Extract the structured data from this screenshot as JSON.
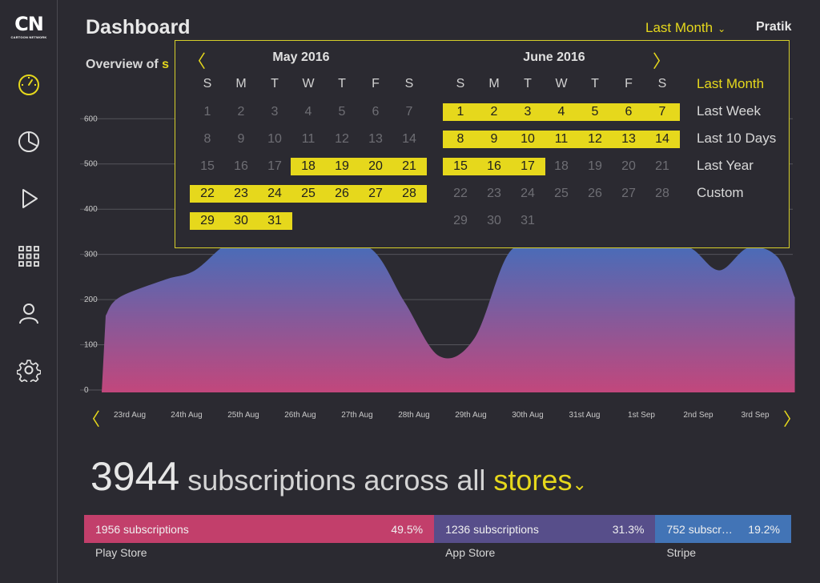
{
  "brand": {
    "logo": "CN",
    "logo_sub": "CARTOON NETWORK"
  },
  "header": {
    "title": "Dashboard",
    "range_select": "Last Month",
    "user": "Pratik",
    "overview_prefix": "Overview of ",
    "overview_highlight": "s"
  },
  "sidebar": {
    "items": [
      {
        "icon": "speedometer-icon",
        "active": true
      },
      {
        "icon": "pie-chart-icon",
        "active": false
      },
      {
        "icon": "play-icon",
        "active": false
      },
      {
        "icon": "grid-icon",
        "active": false
      },
      {
        "icon": "user-icon",
        "active": false
      },
      {
        "icon": "gear-icon",
        "active": false
      }
    ]
  },
  "calendar": {
    "prev_arrow": "〈",
    "next_arrow": "〉",
    "weekdays": [
      "S",
      "M",
      "T",
      "W",
      "T",
      "F",
      "S"
    ],
    "months": [
      {
        "title": "May 2016",
        "start_weekday": 0,
        "days": 31,
        "selected_from": 18,
        "selected_to": 31
      },
      {
        "title": "June 2016",
        "start_weekday": 0,
        "days": 31,
        "selected_from": 1,
        "selected_to": 17
      }
    ],
    "presets": [
      {
        "label": "Last Month",
        "active": true
      },
      {
        "label": "Last Week",
        "active": false
      },
      {
        "label": "Last 10 Days",
        "active": false
      },
      {
        "label": "Last Year",
        "active": false
      },
      {
        "label": "Custom",
        "active": false
      }
    ]
  },
  "chart_data": {
    "type": "area",
    "categories": [
      "23rd Aug",
      "24th Aug",
      "25th Aug",
      "26th Aug",
      "27th Aug",
      "28th Aug",
      "29th Aug",
      "30th Aug",
      "31st Aug",
      "1st Sep",
      "2nd Sep",
      "3rd Sep"
    ],
    "x": [
      0,
      0.05,
      0.3,
      1.1,
      1.6,
      2.3,
      3.2,
      3.7,
      4.6,
      5.2,
      5.8,
      6.4,
      7.0,
      7.6,
      8.2,
      8.9,
      9.5,
      10.1,
      10.6,
      11.1,
      11.6,
      11.9
    ],
    "values": [
      0,
      170,
      210,
      250,
      270,
      340,
      350,
      330,
      320,
      200,
      80,
      120,
      310,
      320,
      320,
      330,
      330,
      320,
      270,
      320,
      300,
      210
    ],
    "yticks": [
      0,
      100,
      200,
      300,
      400,
      500,
      600
    ],
    "ylim": [
      0,
      620
    ],
    "grid": true,
    "gradient_top": "#3f6fbd",
    "gradient_bottom": "#c2477c"
  },
  "chart_nav": {
    "prev": "〈",
    "next": "〉"
  },
  "summary": {
    "count": "3944",
    "text": "subscriptions across all",
    "stores_label": "stores",
    "chevron": "⌄"
  },
  "stores": [
    {
      "name": "Play Store",
      "subs": "1956 subscriptions",
      "pct": "49.5%",
      "share": 49.5,
      "color": "#c23f6b"
    },
    {
      "name": "App Store",
      "subs": "1236 subscriptions",
      "pct": "31.3%",
      "share": 31.3,
      "color": "#574e8a"
    },
    {
      "name": "Stripe",
      "subs": "752 subscr…",
      "pct": "19.2%",
      "share": 19.2,
      "color": "#4274b6"
    }
  ],
  "colors": {
    "accent": "#e6d81c",
    "background": "#2b2a31"
  }
}
